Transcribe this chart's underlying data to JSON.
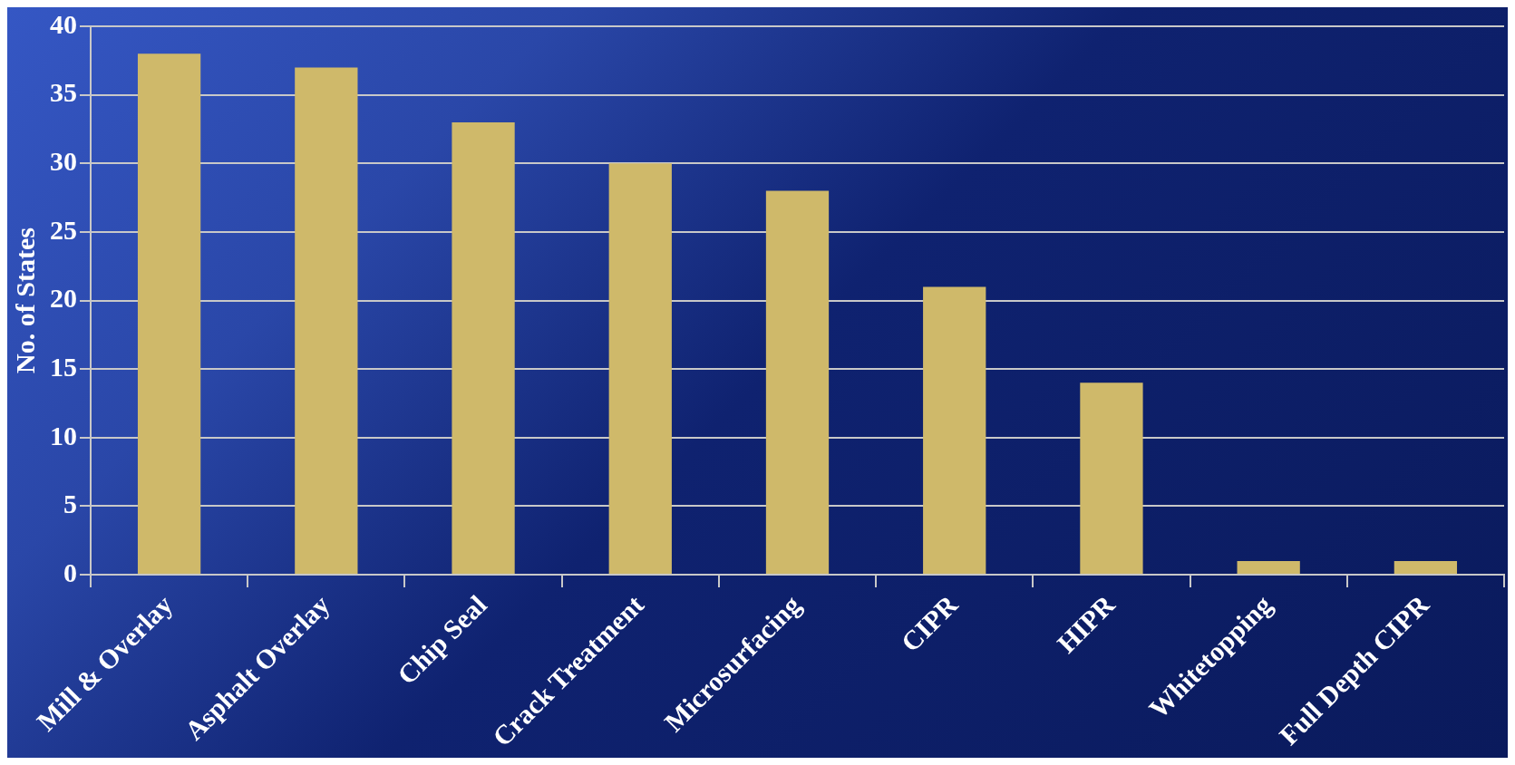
{
  "chart_data": {
    "type": "bar",
    "ylabel": "No. of States",
    "categories": [
      "Mill & Overlay",
      "Asphalt Overlay",
      "Chip Seal",
      "Crack Treatment",
      "Microsurfacing",
      "CIPR",
      "HIPR",
      "Whitetopping",
      "Full Depth CIPR"
    ],
    "values": [
      38,
      37,
      33,
      30,
      28,
      21,
      14,
      1,
      1
    ],
    "color": "#cfb96a",
    "ylim": [
      0,
      40
    ],
    "yticks": [
      0,
      5,
      10,
      15,
      20,
      25,
      30,
      35,
      40
    ],
    "grid": "y",
    "legend": false
  }
}
